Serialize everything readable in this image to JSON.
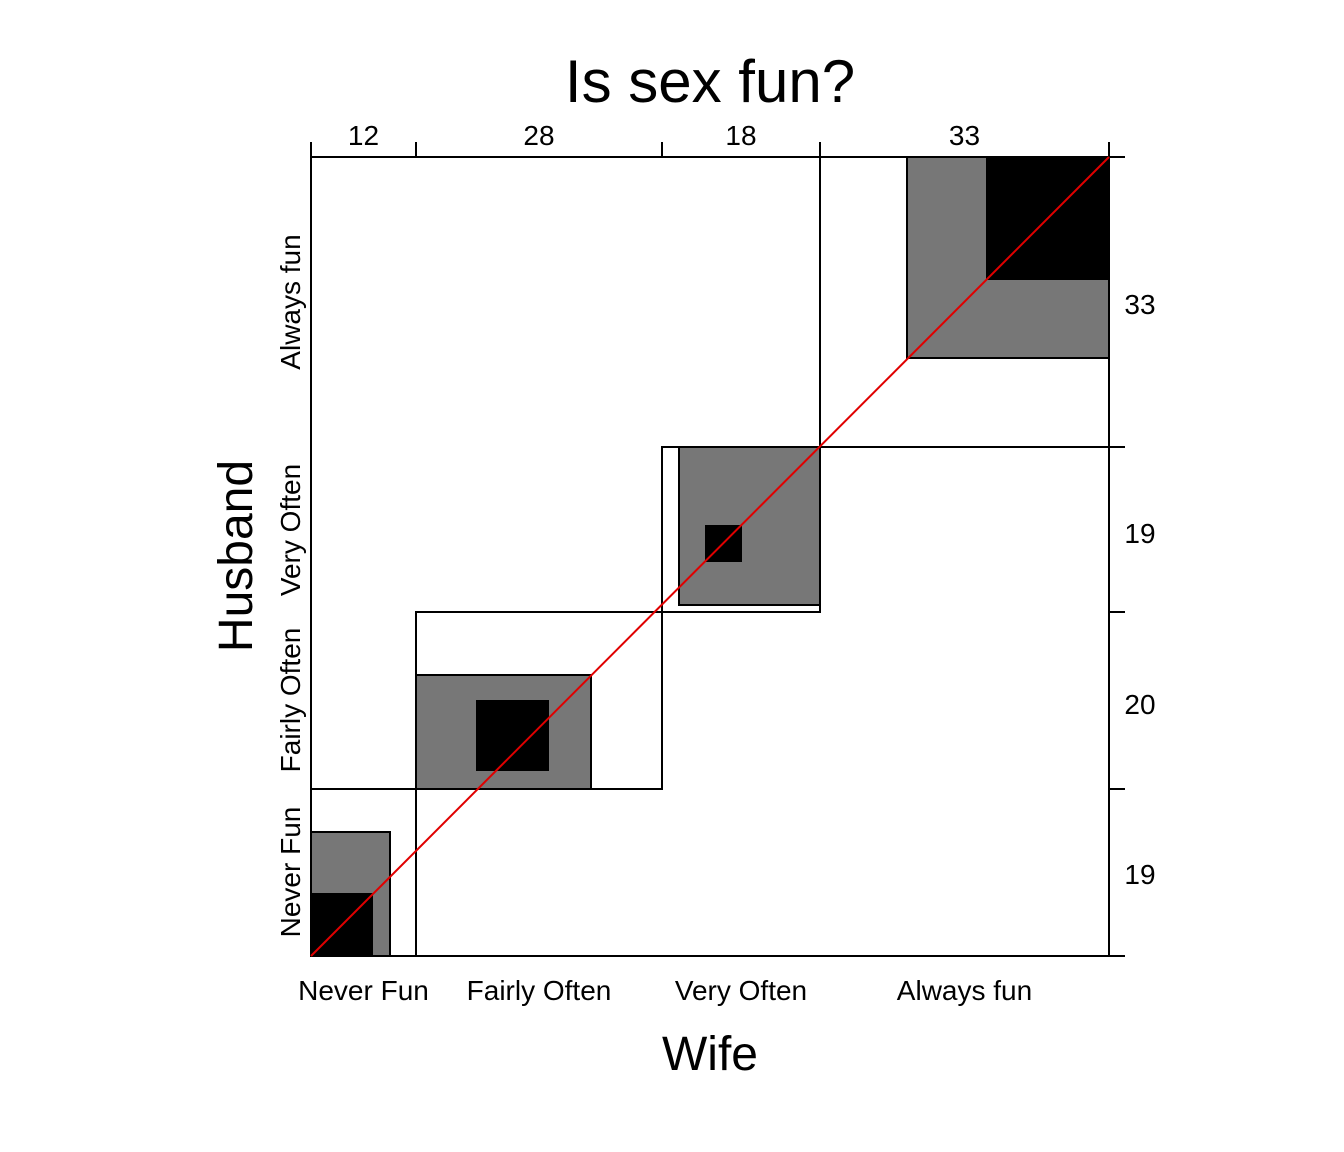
{
  "chart_data": {
    "type": "agreement",
    "title": "Is sex fun?",
    "xlabel": "Wife",
    "ylabel": "Husband",
    "categories": [
      "Never Fun",
      "Fairly Often",
      "Very Often",
      "Always fun"
    ],
    "col_totals": [
      12,
      28,
      18,
      33
    ],
    "row_totals": [
      19,
      20,
      19,
      33
    ],
    "agreement": [
      {
        "category": "Never Fun",
        "exact": 7,
        "partial": 12
      },
      {
        "category": "Fairly Often",
        "exact": 8,
        "partial": 20
      },
      {
        "category": "Very Often",
        "exact": 4,
        "partial": 16
      },
      {
        "category": "Always fun",
        "exact": 14,
        "partial": 23
      }
    ],
    "partial_agreement": true,
    "reference_line": true,
    "colors": {
      "exact": "#000000",
      "partial": "#777777",
      "reference": "#e00000",
      "frame": "#000000"
    }
  }
}
